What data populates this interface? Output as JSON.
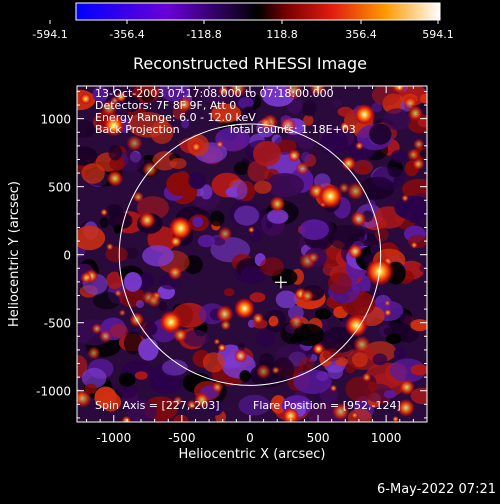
{
  "chart_data": {
    "type": "heatmap",
    "title": "Reconstructed RHESSI Image",
    "xlabel": "Heliocentric X (arcsec)",
    "ylabel": "Heliocentric Y (arcsec)",
    "xlim": [
      -1270,
      1300
    ],
    "ylim": [
      -1230,
      1240
    ],
    "xticks": [
      -1000,
      -500,
      0,
      500,
      1000
    ],
    "yticks": [
      -1000,
      -500,
      0,
      500,
      1000
    ],
    "colorbar": {
      "min": -594.1,
      "max": 594.1,
      "tick_labels": [
        "-594.1",
        "-356.4",
        "-118.8",
        "118.8",
        "356.4",
        "594.1"
      ],
      "colors": [
        "#0000ff",
        "#6a00d8",
        "#000000",
        "#cc1010",
        "#ff9a00",
        "#ffffff"
      ]
    },
    "annotations": [
      "13-Oct-2003 07:17:08.000 to 07:18:00.000",
      "Detectors: 7F 8F 9F, Att 0",
      "Energy Range: 6.0 - 12.0 keV",
      "Back Projection",
      "Total counts: 1.18E+03",
      "Spin Axis = [227,-203]",
      "Flare Position = [952,-124]"
    ],
    "solar_limb": {
      "center": [
        0,
        0
      ],
      "radius": 960
    },
    "spin_axis_marker": [
      227,
      -203
    ],
    "flare_position": [
      952,
      -124
    ],
    "bright_sources": [
      {
        "x": 952,
        "y": -124,
        "value": 594.1
      },
      {
        "x": 590,
        "y": 430,
        "value": 470
      },
      {
        "x": -510,
        "y": 195,
        "value": 420
      },
      {
        "x": -580,
        "y": -495,
        "value": 400
      },
      {
        "x": 780,
        "y": -520,
        "value": 390
      },
      {
        "x": -1000,
        "y": 950,
        "value": 360
      },
      {
        "x": 840,
        "y": 1030,
        "value": 340
      },
      {
        "x": -40,
        "y": -395,
        "value": 320
      }
    ]
  },
  "footer": {
    "timestamp": "6-May-2022 07:21"
  },
  "colors": {
    "limb": "#ffffff",
    "axes": "#ffffff",
    "background": "#000000"
  }
}
